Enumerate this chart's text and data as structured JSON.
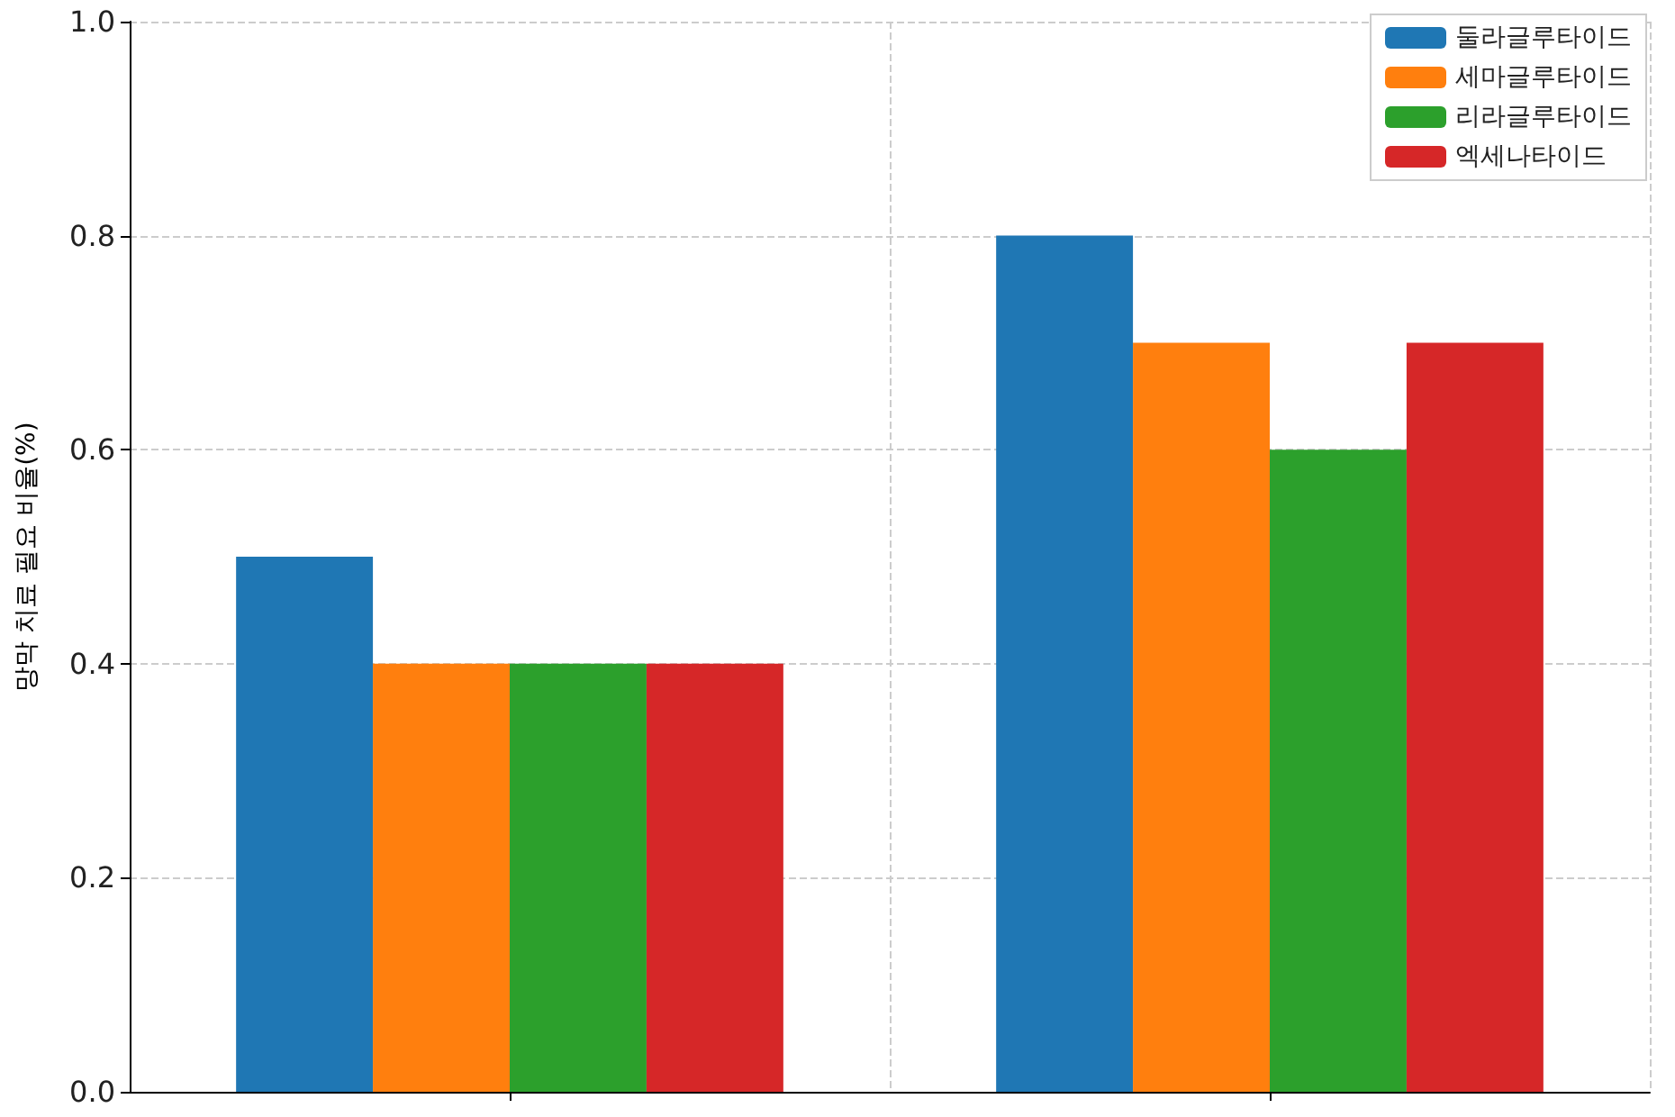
{
  "chart_data": {
    "type": "bar",
    "ylabel": "망막 치료 필요 비율(%)",
    "categories": [
      null,
      null
    ],
    "series": [
      {
        "name": "둘라글루타이드",
        "color": "#1f77b4",
        "values": [
          0.5,
          0.8
        ]
      },
      {
        "name": "세마글루타이드",
        "color": "#ff7f0e",
        "values": [
          0.4,
          0.7
        ]
      },
      {
        "name": "리라글루타이드",
        "color": "#2ca02c",
        "values": [
          0.4,
          0.6
        ]
      },
      {
        "name": "엑세나타이드",
        "color": "#d62728",
        "values": [
          0.4,
          0.7
        ]
      }
    ],
    "ylim": [
      0,
      1
    ],
    "yticks": [
      {
        "value": 0,
        "label": "0.0"
      },
      0.2,
      0.4,
      0.6,
      0.8,
      {
        "value": 1,
        "label": "1.0"
      }
    ],
    "grid": true,
    "legend": "top right"
  }
}
